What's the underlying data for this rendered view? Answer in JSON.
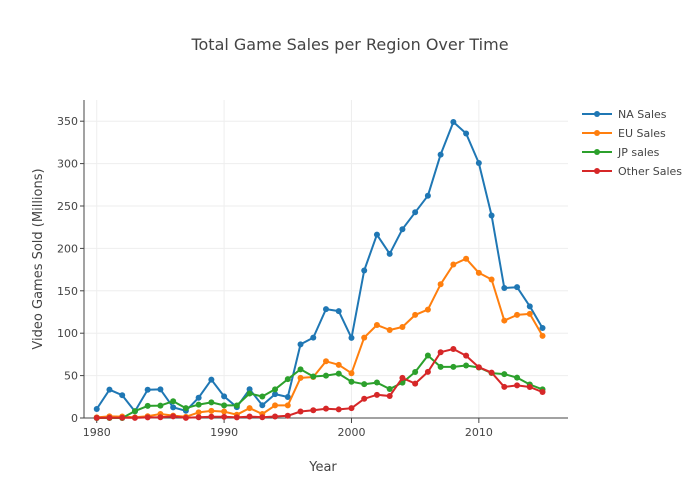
{
  "chart_data": {
    "type": "line",
    "title": "Total Game Sales per Region Over Time",
    "xlabel": "Year",
    "ylabel": "Video Games Sold (Millions)",
    "xlim": [
      1979,
      2017
    ],
    "ylim": [
      0,
      375
    ],
    "x_ticks": [
      1980,
      1990,
      2000,
      2010
    ],
    "y_ticks": [
      0,
      50,
      100,
      150,
      200,
      250,
      300,
      350
    ],
    "grid": true,
    "legend_position": "top-right",
    "x": [
      1980,
      1981,
      1982,
      1983,
      1984,
      1985,
      1986,
      1987,
      1988,
      1989,
      1990,
      1991,
      1992,
      1993,
      1994,
      1995,
      1996,
      1997,
      1998,
      1999,
      2000,
      2001,
      2002,
      2003,
      2004,
      2005,
      2006,
      2007,
      2008,
      2009,
      2010,
      2011,
      2012,
      2013,
      2014,
      2015
    ],
    "series": [
      {
        "name": "NA Sales",
        "color": "#1f77b4",
        "values": [
          10.6,
          33.4,
          26.9,
          7.8,
          33.3,
          33.7,
          12.5,
          8.5,
          23.9,
          45.2,
          25.5,
          12.8,
          33.9,
          15.1,
          28.2,
          24.8,
          86.8,
          94.8,
          128.4,
          126.1,
          94.5,
          173.9,
          216.2,
          193.6,
          222.6,
          242.6,
          262.1,
          310.6,
          349.0,
          335.5,
          300.7,
          238.8,
          153.3,
          154.3,
          131.7,
          106.1
        ]
      },
      {
        "name": "EU Sales",
        "color": "#ff7f0e",
        "values": [
          0.7,
          1.9,
          1.7,
          0.8,
          2.1,
          4.7,
          2.8,
          1.4,
          6.6,
          8.4,
          7.6,
          3.9,
          11.7,
          4.7,
          14.9,
          14.9,
          47.3,
          48.3,
          66.9,
          62.7,
          52.8,
          94.8,
          109.7,
          103.8,
          107.3,
          121.6,
          127.8,
          157.7,
          181.0,
          187.8,
          171.2,
          163.3,
          114.9,
          121.6,
          122.8,
          96.9
        ]
      },
      {
        "name": "JP sales",
        "color": "#2ca02c",
        "values": [
          0.0,
          0.0,
          0.0,
          8.1,
          14.3,
          14.6,
          19.8,
          11.6,
          15.8,
          18.4,
          14.9,
          14.8,
          28.9,
          25.3,
          33.8,
          45.8,
          57.4,
          48.9,
          50.0,
          52.3,
          42.8,
          39.9,
          41.8,
          34.2,
          41.7,
          54.3,
          73.7,
          60.3,
          60.3,
          61.9,
          59.5,
          53.0,
          51.8,
          47.6,
          39.5,
          33.7
        ]
      },
      {
        "name": "Other Sales",
        "color": "#d62728",
        "values": [
          0.1,
          0.3,
          0.3,
          0.1,
          0.7,
          0.9,
          1.9,
          0.2,
          0.9,
          1.5,
          1.4,
          0.7,
          1.7,
          0.9,
          1.8,
          2.6,
          7.7,
          9.1,
          11.0,
          10.1,
          11.6,
          22.7,
          27.3,
          26.0,
          47.3,
          40.6,
          54.4,
          77.6,
          81.4,
          73.5,
          59.9,
          53.5,
          36.7,
          38.5,
          36.5,
          30.6
        ]
      }
    ]
  }
}
